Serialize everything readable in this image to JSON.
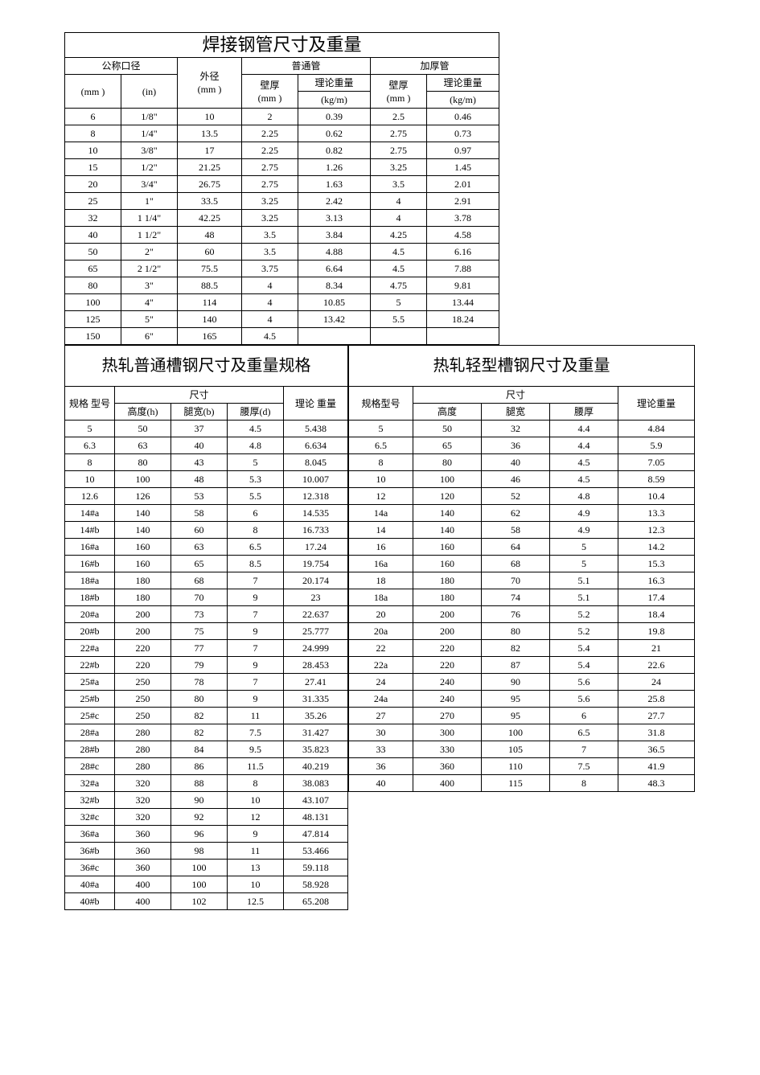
{
  "table1": {
    "title": "焊接钢管尺寸及重量",
    "headers": {
      "nominal": "公称口径",
      "od": "外径",
      "std": "普通管",
      "thick": "加厚管",
      "mm": "(mm )",
      "in": "(in)",
      "wall": "壁厚",
      "tw": "理论重量",
      "kgm": "(kg/m)"
    },
    "rows": [
      [
        "6",
        "1/8\"",
        "10",
        "2",
        "0.39",
        "2.5",
        "0.46"
      ],
      [
        "8",
        "1/4\"",
        "13.5",
        "2.25",
        "0.62",
        "2.75",
        "0.73"
      ],
      [
        "10",
        "3/8\"",
        "17",
        "2.25",
        "0.82",
        "2.75",
        "0.97"
      ],
      [
        "15",
        "1/2\"",
        "21.25",
        "2.75",
        "1.26",
        "3.25",
        "1.45"
      ],
      [
        "20",
        "3/4\"",
        "26.75",
        "2.75",
        "1.63",
        "3.5",
        "2.01"
      ],
      [
        "25",
        "1\"",
        "33.5",
        "3.25",
        "2.42",
        "4",
        "2.91"
      ],
      [
        "32",
        "1 1/4\"",
        "42.25",
        "3.25",
        "3.13",
        "4",
        "3.78"
      ],
      [
        "40",
        "1 1/2\"",
        "48",
        "3.5",
        "3.84",
        "4.25",
        "4.58"
      ],
      [
        "50",
        "2\"",
        "60",
        "3.5",
        "4.88",
        "4.5",
        "6.16"
      ],
      [
        "65",
        "2 1/2\"",
        "75.5",
        "3.75",
        "6.64",
        "4.5",
        "7.88"
      ],
      [
        "80",
        "3\"",
        "88.5",
        "4",
        "8.34",
        "4.75",
        "9.81"
      ],
      [
        "100",
        "4\"",
        "114",
        "4",
        "10.85",
        "5",
        "13.44"
      ],
      [
        "125",
        "5\"",
        "140",
        "4",
        "13.42",
        "5.5",
        "18.24"
      ],
      [
        "150",
        "6\"",
        "165",
        "4.5",
        "",
        "",
        ""
      ]
    ]
  },
  "table2": {
    "title": "热轧普通槽钢尺寸及重量规格",
    "headers": {
      "spec": "规格 型号",
      "dim": "尺寸",
      "tw": "理论 重量",
      "h": "高度(h)",
      "b": "腿宽(b)",
      "d": "腰厚(d)"
    },
    "rows": [
      [
        "5",
        "50",
        "37",
        "4.5",
        "5.438"
      ],
      [
        "6.3",
        "63",
        "40",
        "4.8",
        "6.634"
      ],
      [
        "8",
        "80",
        "43",
        "5",
        "8.045"
      ],
      [
        "10",
        "100",
        "48",
        "5.3",
        "10.007"
      ],
      [
        "12.6",
        "126",
        "53",
        "5.5",
        "12.318"
      ],
      [
        "14#a",
        "140",
        "58",
        "6",
        "14.535"
      ],
      [
        "14#b",
        "140",
        "60",
        "8",
        "16.733"
      ],
      [
        "16#a",
        "160",
        "63",
        "6.5",
        "17.24"
      ],
      [
        "16#b",
        "160",
        "65",
        "8.5",
        "19.754"
      ],
      [
        "18#a",
        "180",
        "68",
        "7",
        "20.174"
      ],
      [
        "18#b",
        "180",
        "70",
        "9",
        "23"
      ],
      [
        "20#a",
        "200",
        "73",
        "7",
        "22.637"
      ],
      [
        "20#b",
        "200",
        "75",
        "9",
        "25.777"
      ],
      [
        "22#a",
        "220",
        "77",
        "7",
        "24.999"
      ],
      [
        "22#b",
        "220",
        "79",
        "9",
        "28.453"
      ],
      [
        "25#a",
        "250",
        "78",
        "7",
        "27.41"
      ],
      [
        "25#b",
        "250",
        "80",
        "9",
        "31.335"
      ],
      [
        "25#c",
        "250",
        "82",
        "11",
        "35.26"
      ],
      [
        "28#a",
        "280",
        "82",
        "7.5",
        "31.427"
      ],
      [
        "28#b",
        "280",
        "84",
        "9.5",
        "35.823"
      ],
      [
        "28#c",
        "280",
        "86",
        "11.5",
        "40.219"
      ],
      [
        "32#a",
        "320",
        "88",
        "8",
        "38.083"
      ],
      [
        "32#b",
        "320",
        "90",
        "10",
        "43.107"
      ],
      [
        "32#c",
        "320",
        "92",
        "12",
        "48.131"
      ],
      [
        "36#a",
        "360",
        "96",
        "9",
        "47.814"
      ],
      [
        "36#b",
        "360",
        "98",
        "11",
        "53.466"
      ],
      [
        "36#c",
        "360",
        "100",
        "13",
        "59.118"
      ],
      [
        "40#a",
        "400",
        "100",
        "10",
        "58.928"
      ],
      [
        "40#b",
        "400",
        "102",
        "12.5",
        "65.208"
      ]
    ]
  },
  "table3": {
    "title": "热轧轻型槽钢尺寸及重量",
    "headers": {
      "spec": "规格型号",
      "dim": "尺寸",
      "tw": "理论重量",
      "h": "高度",
      "b": "腿宽",
      "d": "腰厚"
    },
    "rows": [
      [
        "5",
        "50",
        "32",
        "4.4",
        "4.84"
      ],
      [
        "6.5",
        "65",
        "36",
        "4.4",
        "5.9"
      ],
      [
        "8",
        "80",
        "40",
        "4.5",
        "7.05"
      ],
      [
        "10",
        "100",
        "46",
        "4.5",
        "8.59"
      ],
      [
        "12",
        "120",
        "52",
        "4.8",
        "10.4"
      ],
      [
        "14a",
        "140",
        "62",
        "4.9",
        "13.3"
      ],
      [
        "14",
        "140",
        "58",
        "4.9",
        "12.3"
      ],
      [
        "16",
        "160",
        "64",
        "5",
        "14.2"
      ],
      [
        "16a",
        "160",
        "68",
        "5",
        "15.3"
      ],
      [
        "18",
        "180",
        "70",
        "5.1",
        "16.3"
      ],
      [
        "18a",
        "180",
        "74",
        "5.1",
        "17.4"
      ],
      [
        "20",
        "200",
        "76",
        "5.2",
        "18.4"
      ],
      [
        "20a",
        "200",
        "80",
        "5.2",
        "19.8"
      ],
      [
        "22",
        "220",
        "82",
        "5.4",
        "21"
      ],
      [
        "22a",
        "220",
        "87",
        "5.4",
        "22.6"
      ],
      [
        "24",
        "240",
        "90",
        "5.6",
        "24"
      ],
      [
        "24a",
        "240",
        "95",
        "5.6",
        "25.8"
      ],
      [
        "27",
        "270",
        "95",
        "6",
        "27.7"
      ],
      [
        "30",
        "300",
        "100",
        "6.5",
        "31.8"
      ],
      [
        "33",
        "330",
        "105",
        "7",
        "36.5"
      ],
      [
        "36",
        "360",
        "110",
        "7.5",
        "41.9"
      ],
      [
        "40",
        "400",
        "115",
        "8",
        "48.3"
      ]
    ]
  }
}
